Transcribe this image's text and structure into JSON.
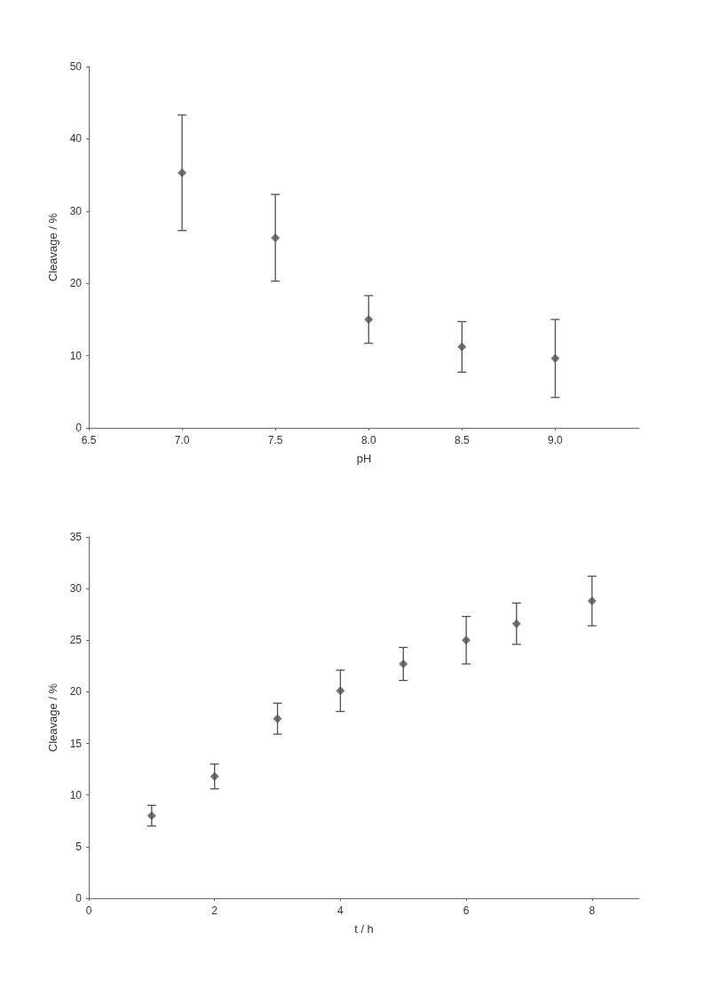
{
  "chart_data": [
    {
      "type": "scatter",
      "xlabel": "pH",
      "ylabel": "Cleavage / %",
      "x": [
        7.0,
        7.5,
        8.0,
        8.5,
        9.0
      ],
      "values": [
        35.3,
        26.3,
        15.0,
        11.2,
        9.6
      ],
      "errors": [
        8,
        6,
        3.3,
        3.5,
        5.4
      ],
      "color": "#505050",
      "marker": "diamond",
      "xlim": [
        6.5,
        9.45
      ],
      "xticks": [
        {
          "value": 6.5,
          "label": "6.5"
        },
        {
          "value": 7,
          "label": "7.0"
        },
        {
          "value": 7.5,
          "label": "7.5"
        },
        {
          "value": 8,
          "label": "8.0"
        },
        {
          "value": 8.5,
          "label": "8.5"
        },
        {
          "value": 9,
          "label": "9.0"
        }
      ],
      "ylim": [
        0,
        50
      ],
      "yticks": [
        0,
        10,
        20,
        30,
        40,
        50
      ]
    },
    {
      "type": "scatter",
      "xlabel": "t / h",
      "ylabel": "Cleavage / %",
      "x": [
        1,
        2,
        3,
        4,
        5,
        6,
        6.8,
        8
      ],
      "values": [
        8.0,
        11.8,
        17.4,
        20.1,
        22.7,
        25.0,
        26.6,
        28.8
      ],
      "errors": [
        1,
        1.2,
        1.5,
        2,
        1.6,
        2.3,
        2,
        2.4
      ],
      "color": "#505050",
      "marker": "diamond",
      "xlim": [
        0,
        8.75
      ],
      "xticks": [
        0,
        2,
        4,
        6,
        8
      ],
      "ylim": [
        0,
        35
      ],
      "yticks": [
        0,
        5,
        10,
        15,
        20,
        25,
        30,
        35
      ]
    }
  ]
}
